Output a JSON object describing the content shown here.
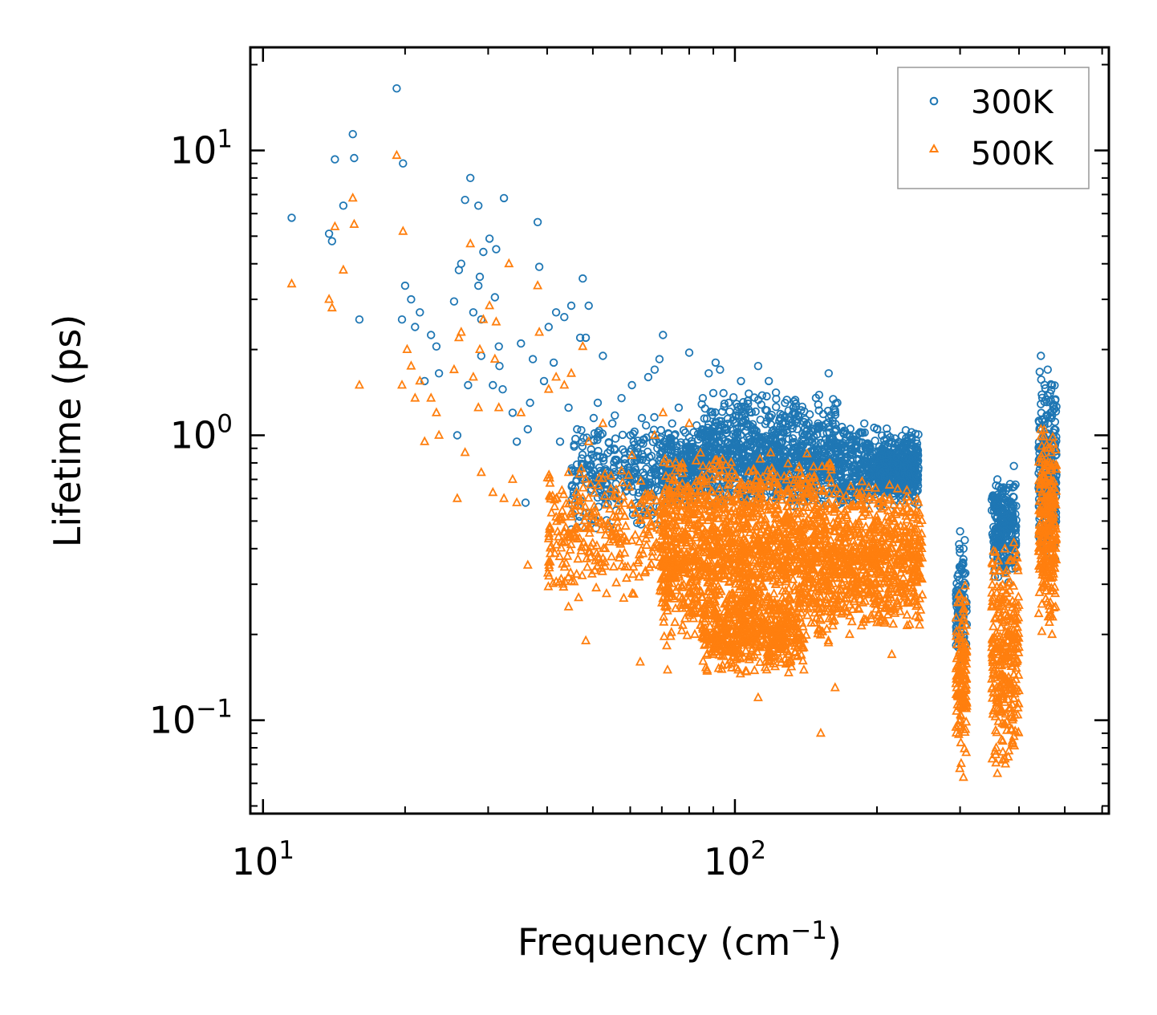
{
  "chart_data": {
    "type": "scatter",
    "title": "",
    "xlabel": {
      "base": "Frequency (cm",
      "sup": "−1",
      "close": ")"
    },
    "ylabel": "Lifetime (ps)",
    "xscale": "log",
    "yscale": "log",
    "xlim": [
      9.4,
      620
    ],
    "ylim": [
      0.047,
      23
    ],
    "legend_position": "upper-right",
    "x_ticks": [
      {
        "value": 10,
        "base": "10",
        "exp": "1"
      },
      {
        "value": 100,
        "base": "10",
        "exp": "2"
      }
    ],
    "y_ticks": [
      {
        "value": 0.1,
        "base": "10",
        "exp": "−1"
      },
      {
        "value": 1,
        "base": "10",
        "exp": "0"
      },
      {
        "value": 10,
        "base": "10",
        "exp": "1"
      }
    ],
    "series": [
      {
        "name": "300K",
        "marker": "circle",
        "color": "#1f77b4",
        "points": [
          [
            11.5,
            5.8
          ],
          [
            13.8,
            5.1
          ],
          [
            14.0,
            4.8
          ],
          [
            14.2,
            9.3
          ],
          [
            14.8,
            6.4
          ],
          [
            15.5,
            11.4
          ],
          [
            15.6,
            9.4
          ],
          [
            16.0,
            2.55
          ],
          [
            19.2,
            16.5
          ],
          [
            19.8,
            9.0
          ],
          [
            20.0,
            3.35
          ],
          [
            19.7,
            2.55
          ],
          [
            20.6,
            3.0
          ],
          [
            21.0,
            2.4
          ],
          [
            21.5,
            2.7
          ],
          [
            22.0,
            1.55
          ],
          [
            22.7,
            2.25
          ],
          [
            23.3,
            2.05
          ],
          [
            23.6,
            1.65
          ],
          [
            25.4,
            2.95
          ],
          [
            25.8,
            1.0
          ],
          [
            26.0,
            3.8
          ],
          [
            26.3,
            4.0
          ],
          [
            26.8,
            6.7
          ],
          [
            27.2,
            1.5
          ],
          [
            27.5,
            8.0
          ],
          [
            27.9,
            2.7
          ],
          [
            28.6,
            6.4
          ],
          [
            28.6,
            3.35
          ],
          [
            28.8,
            3.6
          ],
          [
            29.0,
            2.55
          ],
          [
            29.3,
            4.4
          ],
          [
            29.0,
            1.9
          ],
          [
            30.2,
            4.9
          ],
          [
            31.0,
            3.05
          ],
          [
            31.2,
            4.5
          ],
          [
            31.6,
            2.05
          ],
          [
            30.7,
            1.5
          ],
          [
            31.7,
            1.75
          ],
          [
            32.2,
            1.45
          ],
          [
            32.4,
            6.8
          ],
          [
            33.8,
            1.2
          ],
          [
            34.5,
            0.95
          ],
          [
            35.2,
            2.1
          ],
          [
            36.0,
            0.58
          ],
          [
            36.4,
            1.05
          ],
          [
            36.8,
            1.3
          ],
          [
            37.3,
            1.85
          ],
          [
            38.2,
            5.6
          ],
          [
            38.5,
            3.9
          ],
          [
            39.4,
            1.55
          ],
          [
            40.3,
            2.4
          ],
          [
            41.3,
            1.8
          ],
          [
            41.8,
            2.7
          ],
          [
            42.6,
            0.95
          ],
          [
            43.5,
            2.6
          ],
          [
            44.4,
            1.25
          ],
          [
            45.0,
            2.85
          ],
          [
            46.3,
            1.05
          ],
          [
            47.0,
            2.2
          ],
          [
            47.6,
            3.55
          ],
          [
            48.3,
            2.2
          ],
          [
            49.0,
            2.85
          ],
          [
            50.2,
            1.15
          ],
          [
            51.2,
            1.3
          ],
          [
            52.5,
            1.9
          ],
          [
            55.0,
            1.1
          ],
          [
            57.5,
            1.35
          ],
          [
            60.5,
            1.5
          ],
          [
            61.0,
            0.95
          ],
          [
            63.5,
            1.15
          ],
          [
            65.5,
            1.6
          ],
          [
            67.6,
            1.7
          ],
          [
            69.2,
            1.85
          ],
          [
            70.4,
            2.25
          ],
          [
            73.6,
            1.1
          ],
          [
            76.0,
            1.25
          ],
          [
            80.0,
            1.95
          ],
          [
            85.5,
            1.35
          ],
          [
            88.0,
            1.65
          ],
          [
            91.0,
            1.8
          ],
          [
            93.0,
            1.7
          ],
          [
            97.0,
            1.3
          ],
          [
            103.0,
            1.55
          ],
          [
            107.0,
            1.4
          ],
          [
            112.0,
            1.75
          ],
          [
            118.0,
            1.55
          ],
          [
            125.0,
            1.15
          ],
          [
            133.0,
            1.25
          ],
          [
            143.0,
            0.95
          ],
          [
            150.0,
            1.1
          ],
          [
            158.0,
            1.65
          ],
          [
            165.0,
            0.9
          ],
          [
            175.0,
            1.0
          ],
          [
            188.0,
            1.1
          ],
          [
            200.0,
            1.05
          ],
          [
            215.0,
            0.95
          ],
          [
            240.0,
            0.58
          ],
          [
            300.0,
            0.46
          ],
          [
            305.0,
            0.4
          ],
          [
            360.0,
            0.7
          ],
          [
            368.0,
            0.5
          ],
          [
            390.0,
            0.78
          ],
          [
            445.0,
            1.9
          ],
          [
            460.0,
            1.7
          ],
          [
            470.0,
            1.5
          ],
          [
            478.0,
            0.85
          ]
        ],
        "clusters": [
          {
            "x": [
              45,
              70
            ],
            "y": [
              0.45,
              1.2
            ],
            "count": 280
          },
          {
            "x": [
              70,
              245
            ],
            "y": [
              0.55,
              1.1
            ],
            "count": 1400
          },
          {
            "x": [
              85,
              165
            ],
            "y": [
              0.8,
              1.45
            ],
            "count": 260
          },
          {
            "x": [
              200,
              245
            ],
            "y": [
              0.6,
              0.95
            ],
            "count": 300
          },
          {
            "x": [
              294,
              310
            ],
            "y": [
              0.14,
              0.44
            ],
            "count": 110
          },
          {
            "x": [
              350,
              395
            ],
            "y": [
              0.3,
              0.72
            ],
            "count": 240
          },
          {
            "x": [
              440,
              480
            ],
            "y": [
              0.35,
              1.7
            ],
            "count": 260
          }
        ]
      },
      {
        "name": "500K",
        "marker": "triangle",
        "color": "#ff7f0e",
        "points": [
          [
            11.5,
            3.4
          ],
          [
            13.8,
            3.0
          ],
          [
            14.0,
            2.8
          ],
          [
            14.2,
            5.4
          ],
          [
            14.8,
            3.8
          ],
          [
            15.5,
            6.8
          ],
          [
            15.6,
            5.5
          ],
          [
            16.0,
            1.5
          ],
          [
            19.2,
            9.6
          ],
          [
            19.8,
            5.2
          ],
          [
            19.7,
            1.5
          ],
          [
            20.2,
            2.0
          ],
          [
            20.6,
            1.75
          ],
          [
            21.0,
            1.35
          ],
          [
            21.5,
            1.55
          ],
          [
            22.0,
            0.95
          ],
          [
            22.7,
            1.35
          ],
          [
            23.3,
            1.2
          ],
          [
            23.6,
            1.0
          ],
          [
            25.4,
            1.7
          ],
          [
            25.8,
            0.6
          ],
          [
            26.0,
            2.2
          ],
          [
            26.3,
            2.3
          ],
          [
            26.8,
            0.87
          ],
          [
            27.5,
            4.7
          ],
          [
            27.9,
            1.6
          ],
          [
            28.6,
            1.25
          ],
          [
            28.8,
            2.0
          ],
          [
            29.0,
            0.74
          ],
          [
            29.3,
            2.55
          ],
          [
            30.2,
            2.85
          ],
          [
            30.7,
            0.63
          ],
          [
            31.0,
            1.85
          ],
          [
            31.2,
            2.5
          ],
          [
            31.6,
            1.25
          ],
          [
            32.4,
            0.6
          ],
          [
            33.2,
            4.0
          ],
          [
            33.8,
            0.7
          ],
          [
            34.5,
            0.58
          ],
          [
            35.2,
            1.2
          ],
          [
            36.4,
            0.35
          ],
          [
            38.2,
            3.35
          ],
          [
            38.5,
            2.3
          ],
          [
            40.3,
            1.45
          ],
          [
            41.8,
            1.6
          ],
          [
            43.5,
            1.5
          ],
          [
            44.4,
            0.25
          ],
          [
            45.0,
            1.65
          ],
          [
            47.6,
            2.05
          ],
          [
            48.3,
            0.19
          ],
          [
            49.0,
            0.95
          ],
          [
            52.5,
            1.1
          ],
          [
            57.5,
            0.75
          ],
          [
            60.5,
            0.85
          ],
          [
            63.0,
            0.16
          ],
          [
            67.6,
            1.0
          ],
          [
            70.4,
            1.2
          ],
          [
            72.0,
            0.15
          ],
          [
            80.0,
            1.1
          ],
          [
            90.0,
            0.17
          ],
          [
            97.0,
            0.2
          ],
          [
            112.0,
            0.12
          ],
          [
            125.0,
            0.18
          ],
          [
            140.0,
            0.15
          ],
          [
            152.0,
            0.09
          ],
          [
            163.0,
            0.13
          ],
          [
            175.0,
            0.2
          ],
          [
            200.0,
            0.22
          ],
          [
            215.0,
            0.17
          ],
          [
            240.0,
            0.33
          ],
          [
            300.0,
            0.26
          ],
          [
            305.0,
            0.063
          ],
          [
            360.0,
            0.065
          ],
          [
            368.0,
            0.16
          ],
          [
            390.0,
            0.42
          ],
          [
            445.0,
            1.05
          ],
          [
            460.0,
            0.9
          ],
          [
            470.0,
            0.2
          ],
          [
            478.0,
            0.45
          ]
        ],
        "clusters": [
          {
            "x": [
              40,
              75
            ],
            "y": [
              0.25,
              0.8
            ],
            "count": 320
          },
          {
            "x": [
              70,
              160
            ],
            "y": [
              0.17,
              0.9
            ],
            "count": 1600
          },
          {
            "x": [
              85,
              140
            ],
            "y": [
              0.14,
              0.28
            ],
            "count": 420
          },
          {
            "x": [
              160,
              250
            ],
            "y": [
              0.2,
              0.7
            ],
            "count": 700
          },
          {
            "x": [
              294,
              310
            ],
            "y": [
              0.064,
              0.3
            ],
            "count": 150
          },
          {
            "x": [
              350,
              400
            ],
            "y": [
              0.064,
              0.45
            ],
            "count": 300
          },
          {
            "x": [
              440,
              480
            ],
            "y": [
              0.2,
              1.1
            ],
            "count": 260
          }
        ]
      }
    ]
  }
}
